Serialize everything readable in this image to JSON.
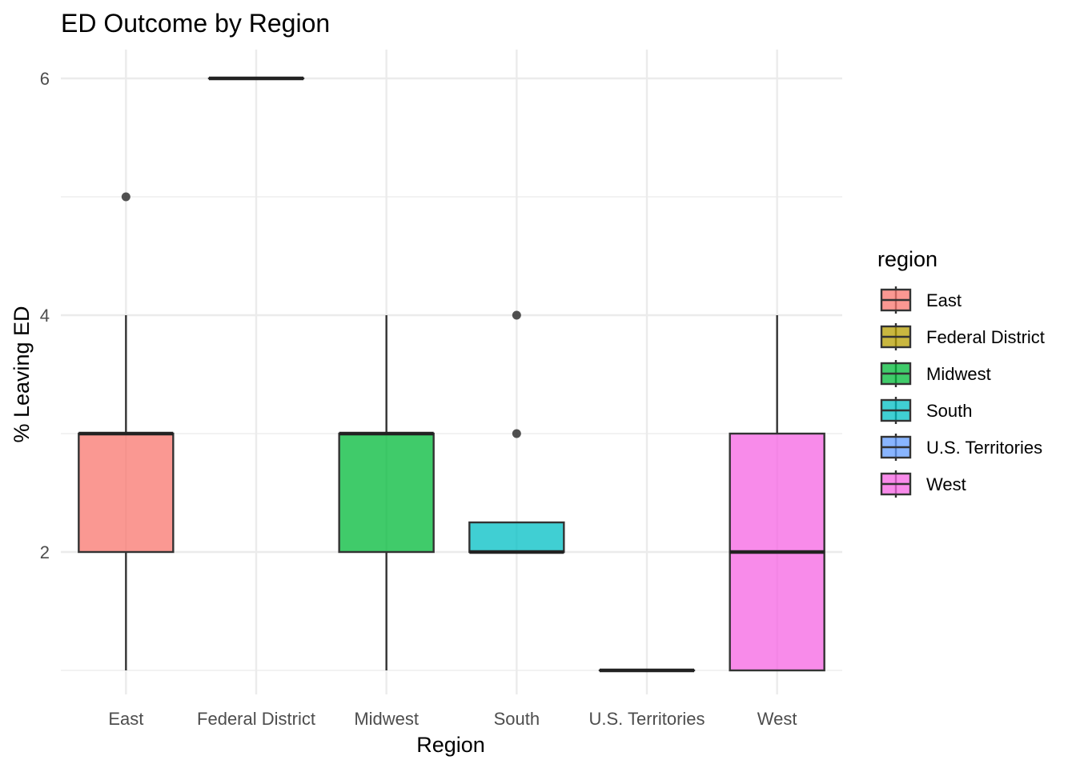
{
  "chart_data": {
    "type": "boxplot",
    "title": "ED Outcome by Region",
    "xlabel": "Region",
    "ylabel": "% Leaving ED",
    "categories": [
      "East",
      "Federal District",
      "Midwest",
      "South",
      "U.S. Territories",
      "West"
    ],
    "y_ticks": [
      2,
      4,
      6
    ],
    "ylim": [
      0.6,
      6.5
    ],
    "grid": true,
    "legend": {
      "title": "region",
      "position": "right"
    },
    "boxes": [
      {
        "category": "East",
        "min": 1,
        "q1": 2,
        "median": 3,
        "q3": 3,
        "max": 4,
        "outliers": [
          5
        ],
        "color": "#F8766D"
      },
      {
        "category": "Federal District",
        "min": 6,
        "q1": 6,
        "median": 6,
        "q3": 6,
        "max": 6,
        "outliers": [],
        "color": "#B79F00"
      },
      {
        "category": "Midwest",
        "min": 1,
        "q1": 2,
        "median": 3,
        "q3": 3,
        "max": 4,
        "outliers": [],
        "color": "#00BA38"
      },
      {
        "category": "South",
        "min": 2,
        "q1": 2,
        "median": 2,
        "q3": 2.25,
        "max": 2.25,
        "outliers": [
          3,
          4
        ],
        "color": "#00BFC4"
      },
      {
        "category": "U.S. Territories",
        "min": 1,
        "q1": 1,
        "median": 1,
        "q3": 1,
        "max": 1,
        "outliers": [],
        "color": "#619CFF"
      },
      {
        "category": "West",
        "min": 1,
        "q1": 1,
        "median": 2,
        "q3": 3,
        "max": 4,
        "outliers": [],
        "color": "#F564E3"
      }
    ]
  }
}
